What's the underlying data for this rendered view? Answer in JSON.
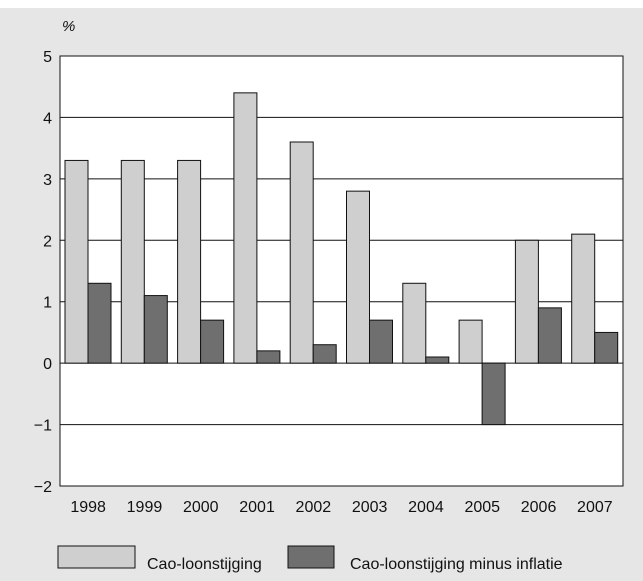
{
  "chart_data": {
    "type": "bar",
    "ylabel": "%",
    "ylim": [
      -2,
      5
    ],
    "yticks": [
      5,
      4,
      3,
      2,
      1,
      0,
      -1,
      -2
    ],
    "ytick_labels": [
      "5",
      "4",
      "3",
      "2",
      "1",
      "0",
      "−1",
      "−2"
    ],
    "grid": true,
    "legend_position": "bottom",
    "categories": [
      "1998",
      "1999",
      "2000",
      "2001",
      "2002",
      "2003",
      "2004",
      "2005",
      "2006",
      "2007"
    ],
    "series": [
      {
        "name": "Cao-loonstijging",
        "color": "#cfcfcf",
        "values": [
          3.3,
          3.3,
          3.3,
          4.4,
          3.6,
          2.8,
          1.3,
          0.7,
          2.0,
          2.1
        ]
      },
      {
        "name": "Cao-loonstijging minus inflatie",
        "color": "#6f6f6f",
        "values": [
          1.3,
          1.1,
          0.7,
          0.2,
          0.3,
          0.7,
          0.1,
          -1.0,
          0.9,
          0.5
        ]
      }
    ]
  }
}
